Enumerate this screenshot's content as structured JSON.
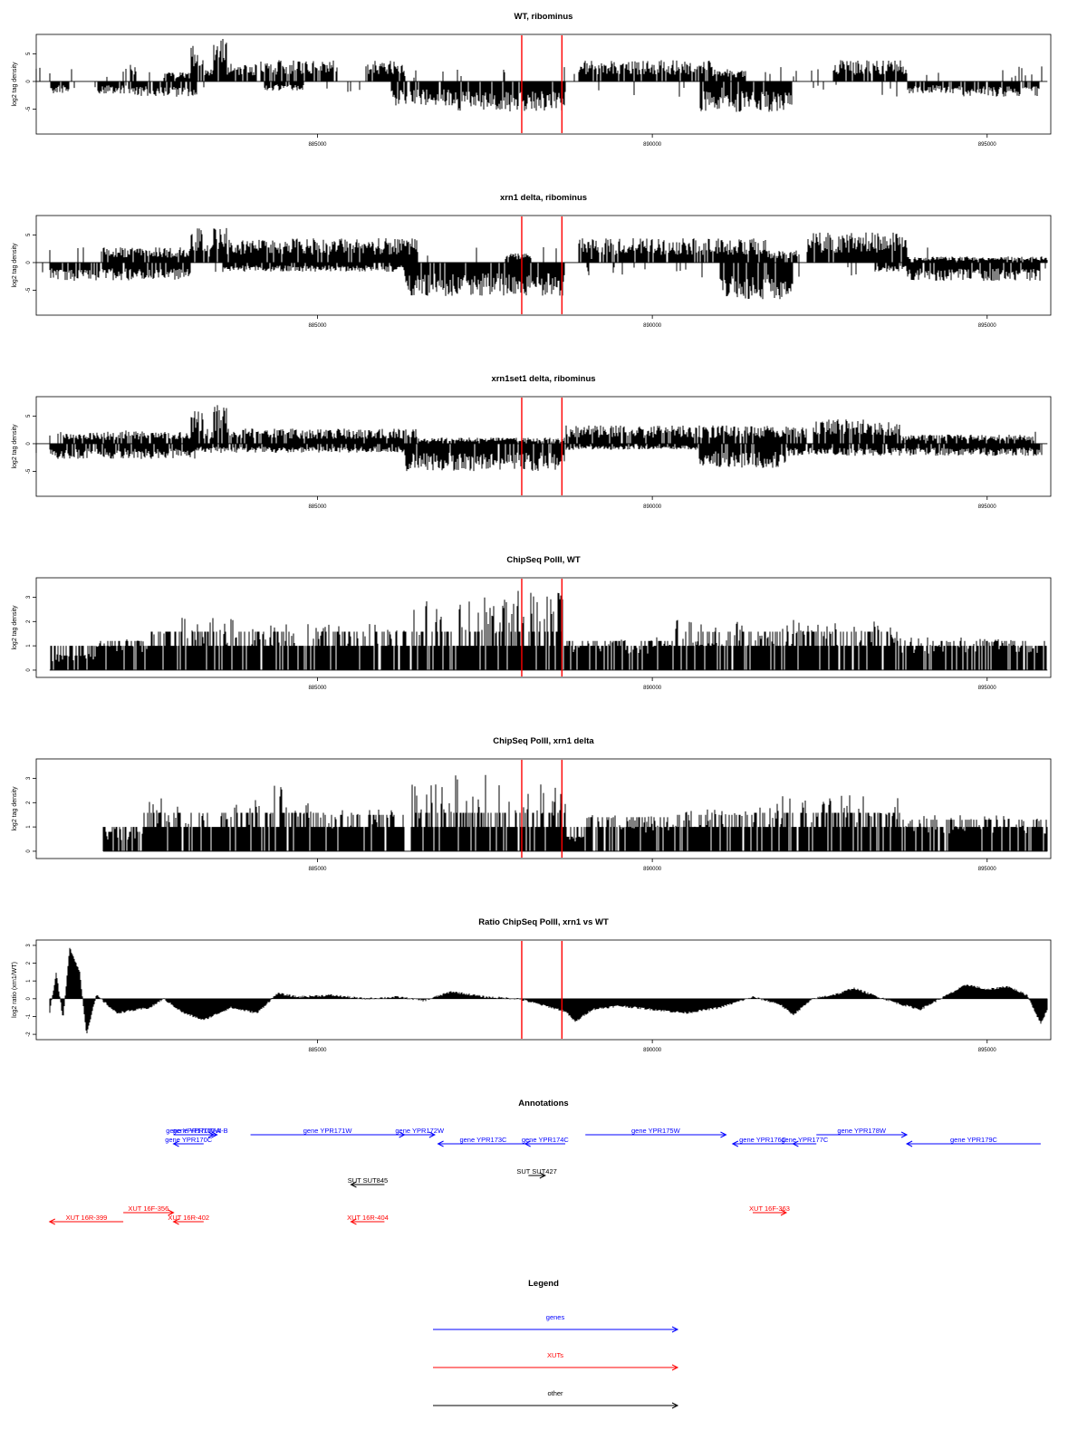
{
  "chart_data": {
    "type": "genome-track-panels",
    "x_axis": {
      "range": [
        880800,
        895950
      ],
      "ticks": [
        885000,
        890000,
        895000
      ],
      "tick_labels": [
        "885000",
        "890000",
        "895000"
      ]
    },
    "highlight_positions": [
      888050,
      888650
    ],
    "highlight_color": "#ff0000",
    "tracks": [
      {
        "id": "wt-ribominus",
        "title": "WT, ribominus",
        "ylabel": "log2 tag density",
        "style": "stranded",
        "ylim": [
          -9.5,
          8.5
        ],
        "yticks": [
          -5,
          0,
          5
        ],
        "ytick_labels": [
          "-5",
          "0",
          "5"
        ],
        "data_start": 880800,
        "data_end": 895900,
        "plus_blocks": [
          {
            "start": 882200,
            "end": 882300,
            "level": 3
          },
          {
            "start": 882700,
            "end": 883100,
            "level": 1.5
          },
          {
            "start": 883100,
            "end": 883300,
            "level": 6
          },
          {
            "start": 883300,
            "end": 883450,
            "level": 2
          },
          {
            "start": 883450,
            "end": 883650,
            "level": 7
          },
          {
            "start": 883650,
            "end": 884100,
            "level": 3
          },
          {
            "start": 884150,
            "end": 885300,
            "level": 3.5
          },
          {
            "start": 885700,
            "end": 886300,
            "level": 3.5
          },
          {
            "start": 888900,
            "end": 890900,
            "level": 3.5
          },
          {
            "start": 890900,
            "end": 891400,
            "level": 2
          },
          {
            "start": 892700,
            "end": 893800,
            "level": 3.5
          }
        ],
        "minus_blocks": [
          {
            "start": 881000,
            "end": 881300,
            "level": -2
          },
          {
            "start": 881700,
            "end": 882200,
            "level": -2
          },
          {
            "start": 882200,
            "end": 883200,
            "level": -2.5
          },
          {
            "start": 884200,
            "end": 884800,
            "level": -1.5
          },
          {
            "start": 886100,
            "end": 887100,
            "level": -4
          },
          {
            "start": 887100,
            "end": 888700,
            "level": -5
          },
          {
            "start": 890700,
            "end": 892100,
            "level": -5
          },
          {
            "start": 893800,
            "end": 894600,
            "level": -2
          },
          {
            "start": 894600,
            "end": 895800,
            "level": -2.5
          }
        ]
      },
      {
        "id": "xrn1-ribominus",
        "title": "xrn1 delta, ribominus",
        "ylabel": "log2 tag density",
        "style": "stranded",
        "ylim": [
          -9.5,
          8.5
        ],
        "yticks": [
          -5,
          0,
          5
        ],
        "ytick_labels": [
          "-5",
          "0",
          "5"
        ],
        "data_start": 880800,
        "data_end": 895900,
        "plus_blocks": [
          {
            "start": 881800,
            "end": 883100,
            "level": 2.5
          },
          {
            "start": 883100,
            "end": 883300,
            "level": 6
          },
          {
            "start": 883300,
            "end": 883450,
            "level": 3
          },
          {
            "start": 883450,
            "end": 883650,
            "level": 7
          },
          {
            "start": 883650,
            "end": 886500,
            "level": 4
          },
          {
            "start": 887800,
            "end": 888200,
            "level": 1.5
          },
          {
            "start": 888900,
            "end": 891700,
            "level": 4
          },
          {
            "start": 891700,
            "end": 892200,
            "level": 2
          },
          {
            "start": 892300,
            "end": 893800,
            "level": 5
          },
          {
            "start": 893800,
            "end": 895900,
            "level": 1
          }
        ],
        "minus_blocks": [
          {
            "start": 881000,
            "end": 883100,
            "level": -3
          },
          {
            "start": 883600,
            "end": 886300,
            "level": -1.5
          },
          {
            "start": 886300,
            "end": 888700,
            "level": -5.5
          },
          {
            "start": 891000,
            "end": 892100,
            "level": -6
          },
          {
            "start": 893300,
            "end": 893800,
            "level": -1.5
          },
          {
            "start": 893800,
            "end": 895800,
            "level": -3
          }
        ]
      },
      {
        "id": "xrn1set1-ribominus",
        "title": "xrn1set1 delta, ribominus",
        "ylabel": "log2 tag density",
        "style": "stranded",
        "ylim": [
          -9.5,
          8.5
        ],
        "yticks": [
          -5,
          0,
          5
        ],
        "ytick_labels": [
          "-5",
          "0",
          "5"
        ],
        "data_start": 880800,
        "data_end": 895900,
        "plus_blocks": [
          {
            "start": 881200,
            "end": 883100,
            "level": 2
          },
          {
            "start": 883100,
            "end": 883300,
            "level": 5.5
          },
          {
            "start": 883300,
            "end": 883450,
            "level": 2.5
          },
          {
            "start": 883450,
            "end": 883650,
            "level": 6.5
          },
          {
            "start": 883650,
            "end": 886500,
            "level": 2.5
          },
          {
            "start": 886500,
            "end": 888700,
            "level": 1
          },
          {
            "start": 888700,
            "end": 892300,
            "level": 3
          },
          {
            "start": 892400,
            "end": 893700,
            "level": 4
          },
          {
            "start": 893700,
            "end": 895700,
            "level": 1.5
          }
        ],
        "minus_blocks": [
          {
            "start": 881000,
            "end": 883200,
            "level": -2.5
          },
          {
            "start": 883200,
            "end": 886300,
            "level": -1.5
          },
          {
            "start": 886300,
            "end": 888700,
            "level": -4.5
          },
          {
            "start": 888700,
            "end": 890700,
            "level": -1
          },
          {
            "start": 890700,
            "end": 892000,
            "level": -4
          },
          {
            "start": 892000,
            "end": 895800,
            "level": -2
          }
        ]
      },
      {
        "id": "chipseq-wt",
        "title": "ChipSeq PolII, WT",
        "ylabel": "log2 tag density",
        "style": "positive",
        "ylim": [
          -0.3,
          3.8
        ],
        "yticks": [
          0,
          1,
          2,
          3
        ],
        "ytick_labels": [
          "0",
          "1",
          "2",
          "3"
        ],
        "data_start": 881000,
        "data_end": 895900,
        "blocks": [
          {
            "start": 881000,
            "end": 881700,
            "level": 0.6
          },
          {
            "start": 881700,
            "end": 882500,
            "level": 1.2
          },
          {
            "start": 882500,
            "end": 884000,
            "level": 1.9
          },
          {
            "start": 884000,
            "end": 886400,
            "level": 1.7
          },
          {
            "start": 886400,
            "end": 887000,
            "level": 2.5
          },
          {
            "start": 887000,
            "end": 887900,
            "level": 2.6
          },
          {
            "start": 887900,
            "end": 888700,
            "level": 2.9
          },
          {
            "start": 888700,
            "end": 890300,
            "level": 1.2
          },
          {
            "start": 890300,
            "end": 893700,
            "level": 1.8
          },
          {
            "start": 893700,
            "end": 895900,
            "level": 1.2
          }
        ]
      },
      {
        "id": "chipseq-xrn1",
        "title": "ChipSeq PolII, xrn1 delta",
        "ylabel": "log2 tag density",
        "style": "positive",
        "ylim": [
          -0.3,
          3.8
        ],
        "yticks": [
          0,
          1,
          2,
          3
        ],
        "ytick_labels": [
          "0",
          "1",
          "2",
          "3"
        ],
        "data_start": 881800,
        "data_end": 895900,
        "blocks": [
          {
            "start": 881800,
            "end": 882400,
            "level": 0.8
          },
          {
            "start": 882400,
            "end": 884000,
            "level": 1.9
          },
          {
            "start": 884000,
            "end": 885100,
            "level": 2.4
          },
          {
            "start": 885100,
            "end": 886300,
            "level": 1.5
          },
          {
            "start": 886400,
            "end": 887000,
            "level": 2.4
          },
          {
            "start": 887000,
            "end": 887900,
            "level": 2.8
          },
          {
            "start": 887900,
            "end": 888700,
            "level": 2.5
          },
          {
            "start": 888700,
            "end": 889000,
            "level": 0.6
          },
          {
            "start": 889000,
            "end": 890300,
            "level": 1.4
          },
          {
            "start": 890300,
            "end": 891500,
            "level": 1.5
          },
          {
            "start": 891500,
            "end": 892300,
            "level": 2
          },
          {
            "start": 892300,
            "end": 893700,
            "level": 2.1
          },
          {
            "start": 893700,
            "end": 895900,
            "level": 1.3
          }
        ]
      },
      {
        "id": "ratio-xrn1-wt",
        "title": "Ratio ChipSeq PolII, xrn1 vs WT",
        "ylabel": "log2 ratio (xrn1/WT)",
        "style": "ratio",
        "ylim": [
          -2.3,
          3.3
        ],
        "yticks": [
          -2,
          -1,
          0,
          1,
          2,
          3
        ],
        "ytick_labels": [
          "-2",
          "-1",
          "0",
          "1",
          "2",
          "3"
        ],
        "data_start": 881000,
        "data_end": 895900,
        "profile": [
          {
            "x": 881000,
            "y": -0.8
          },
          {
            "x": 881100,
            "y": 1.5
          },
          {
            "x": 881200,
            "y": -1.2
          },
          {
            "x": 881300,
            "y": 2.9
          },
          {
            "x": 881450,
            "y": 1.5
          },
          {
            "x": 881550,
            "y": -2.0
          },
          {
            "x": 881700,
            "y": 0.2
          },
          {
            "x": 882000,
            "y": -0.8
          },
          {
            "x": 882500,
            "y": -0.5
          },
          {
            "x": 882700,
            "y": 0.0
          },
          {
            "x": 883000,
            "y": -0.8
          },
          {
            "x": 883300,
            "y": -1.2
          },
          {
            "x": 883700,
            "y": -0.5
          },
          {
            "x": 884100,
            "y": -0.8
          },
          {
            "x": 884400,
            "y": 0.3
          },
          {
            "x": 884700,
            "y": 0.1
          },
          {
            "x": 885200,
            "y": 0.2
          },
          {
            "x": 885700,
            "y": 0.0
          },
          {
            "x": 886200,
            "y": 0.1
          },
          {
            "x": 886600,
            "y": -0.1
          },
          {
            "x": 887000,
            "y": 0.4
          },
          {
            "x": 887500,
            "y": 0.1
          },
          {
            "x": 888000,
            "y": 0.0
          },
          {
            "x": 888300,
            "y": -0.3
          },
          {
            "x": 888700,
            "y": -0.7
          },
          {
            "x": 888850,
            "y": -1.3
          },
          {
            "x": 889100,
            "y": -0.6
          },
          {
            "x": 889500,
            "y": -0.4
          },
          {
            "x": 890000,
            "y": -0.6
          },
          {
            "x": 890500,
            "y": -0.8
          },
          {
            "x": 891000,
            "y": -0.5
          },
          {
            "x": 891500,
            "y": 0.1
          },
          {
            "x": 891900,
            "y": -0.3
          },
          {
            "x": 892100,
            "y": -0.9
          },
          {
            "x": 892400,
            "y": 0.0
          },
          {
            "x": 892800,
            "y": 0.3
          },
          {
            "x": 893000,
            "y": 0.6
          },
          {
            "x": 893300,
            "y": 0.2
          },
          {
            "x": 893700,
            "y": -0.3
          },
          {
            "x": 894000,
            "y": -0.6
          },
          {
            "x": 894400,
            "y": 0.2
          },
          {
            "x": 894700,
            "y": 0.8
          },
          {
            "x": 895000,
            "y": 0.5
          },
          {
            "x": 895300,
            "y": 0.7
          },
          {
            "x": 895600,
            "y": 0.2
          },
          {
            "x": 895800,
            "y": -1.4
          },
          {
            "x": 895900,
            "y": -0.6
          }
        ]
      }
    ],
    "annotations": {
      "title": "Annotations",
      "items": [
        {
          "label": "gene YPR170C",
          "kind": "gene",
          "start": 883300,
          "end": 882850,
          "row": 1
        },
        {
          "label": "gene YPR170W-A",
          "kind": "gene",
          "start": 882850,
          "end": 883450,
          "row": 0
        },
        {
          "label": "gene YPR170W-B",
          "kind": "gene",
          "start": 883000,
          "end": 883500,
          "row": 0
        },
        {
          "label": "gene YPR171W",
          "kind": "gene",
          "start": 884000,
          "end": 886300,
          "row": 0
        },
        {
          "label": "gene YPR172W",
          "kind": "gene",
          "start": 886300,
          "end": 886750,
          "row": 0
        },
        {
          "label": "gene YPR173C",
          "kind": "gene",
          "start": 888150,
          "end": 886800,
          "row": 1
        },
        {
          "label": "gene YPR174C",
          "kind": "gene",
          "start": 888700,
          "end": 888100,
          "row": 1
        },
        {
          "label": "gene YPR175W",
          "kind": "gene",
          "start": 889000,
          "end": 891100,
          "row": 0
        },
        {
          "label": "gene YPR176C",
          "kind": "gene",
          "start": 892100,
          "end": 891200,
          "row": 1
        },
        {
          "label": "gene YPR177C",
          "kind": "gene",
          "start": 892450,
          "end": 892100,
          "row": 1
        },
        {
          "label": "gene YPR178W",
          "kind": "gene",
          "start": 892450,
          "end": 893800,
          "row": 0
        },
        {
          "label": "gene YPR179C",
          "kind": "gene",
          "start": 895800,
          "end": 893800,
          "row": 1
        },
        {
          "label": "SUT SUT845",
          "kind": "other",
          "start": 886000,
          "end": 885500,
          "row": 2
        },
        {
          "label": "SUT SUT427",
          "kind": "other",
          "start": 888150,
          "end": 888400,
          "row": 3
        },
        {
          "label": "XUT 16R-399",
          "kind": "xut",
          "start": 882100,
          "end": 881000,
          "row": 5
        },
        {
          "label": "XUT 16F-356",
          "kind": "xut",
          "start": 882100,
          "end": 882850,
          "row": 4
        },
        {
          "label": "XUT 16R-402",
          "kind": "xut",
          "start": 883300,
          "end": 882850,
          "row": 5
        },
        {
          "label": "XUT 16R-404",
          "kind": "xut",
          "start": 886000,
          "end": 885500,
          "row": 5
        },
        {
          "label": "XUT 16F-363",
          "kind": "xut",
          "start": 891500,
          "end": 892000,
          "row": 4
        }
      ]
    },
    "legend": {
      "title": "Legend",
      "entries": [
        {
          "label": "genes",
          "kind": "gene"
        },
        {
          "label": "XUTs",
          "kind": "xut"
        },
        {
          "label": "other",
          "kind": "other"
        }
      ]
    },
    "colors": {
      "gene": "#0000ff",
      "xut": "#ff0000",
      "other": "#000000",
      "signal": "#000000"
    }
  }
}
